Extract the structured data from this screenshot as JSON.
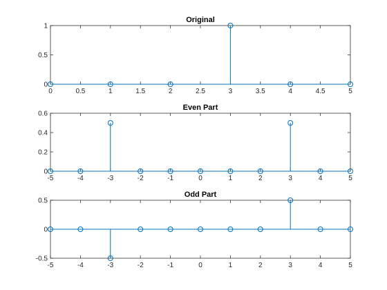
{
  "colors": {
    "stem": "#0072BD",
    "axis": "#262626"
  },
  "chart_data": [
    {
      "type": "stem",
      "title": "Original",
      "x": [
        0,
        1,
        2,
        3,
        4,
        5
      ],
      "y": [
        0,
        0,
        0,
        1,
        0,
        0
      ],
      "xlim": [
        0,
        5
      ],
      "ylim": [
        0,
        1
      ],
      "xticks": [
        0,
        0.5,
        1,
        1.5,
        2,
        2.5,
        3,
        3.5,
        4,
        4.5,
        5
      ],
      "yticks": [
        0,
        0.5,
        1
      ],
      "xtick_labels": [
        "0",
        "0.5",
        "1",
        "1.5",
        "2",
        "2.5",
        "3",
        "3.5",
        "4",
        "4.5",
        "5"
      ],
      "ytick_labels": [
        "0",
        "0.5",
        "1"
      ],
      "grid": false
    },
    {
      "type": "stem",
      "title": "Even Part",
      "x": [
        -5,
        -4,
        -3,
        -2,
        -1,
        0,
        1,
        2,
        3,
        4,
        5
      ],
      "y": [
        0,
        0,
        0.5,
        0,
        0,
        0,
        0,
        0,
        0.5,
        0,
        0
      ],
      "xlim": [
        -5,
        5
      ],
      "ylim": [
        0,
        0.6
      ],
      "xticks": [
        -5,
        -4,
        -3,
        -2,
        -1,
        0,
        1,
        2,
        3,
        4,
        5
      ],
      "yticks": [
        0,
        0.2,
        0.4,
        0.6
      ],
      "xtick_labels": [
        "-5",
        "-4",
        "-3",
        "-2",
        "-1",
        "0",
        "1",
        "2",
        "3",
        "4",
        "5"
      ],
      "ytick_labels": [
        "0",
        "0.2",
        "0.4",
        "0.6"
      ],
      "grid": false
    },
    {
      "type": "stem",
      "title": "Odd Part",
      "x": [
        -5,
        -4,
        -3,
        -2,
        -1,
        0,
        1,
        2,
        3,
        4,
        5
      ],
      "y": [
        0,
        0,
        -0.5,
        0,
        0,
        0,
        0,
        0,
        0.5,
        0,
        0
      ],
      "xlim": [
        -5,
        5
      ],
      "ylim": [
        -0.5,
        0.5
      ],
      "xticks": [
        -5,
        -4,
        -3,
        -2,
        -1,
        0,
        1,
        2,
        3,
        4,
        5
      ],
      "yticks": [
        -0.5,
        0,
        0.5
      ],
      "xtick_labels": [
        "-5",
        "-4",
        "-3",
        "-2",
        "-1",
        "0",
        "1",
        "2",
        "3",
        "4",
        "5"
      ],
      "ytick_labels": [
        "-0.5",
        "0",
        "0.5"
      ],
      "grid": false
    }
  ]
}
